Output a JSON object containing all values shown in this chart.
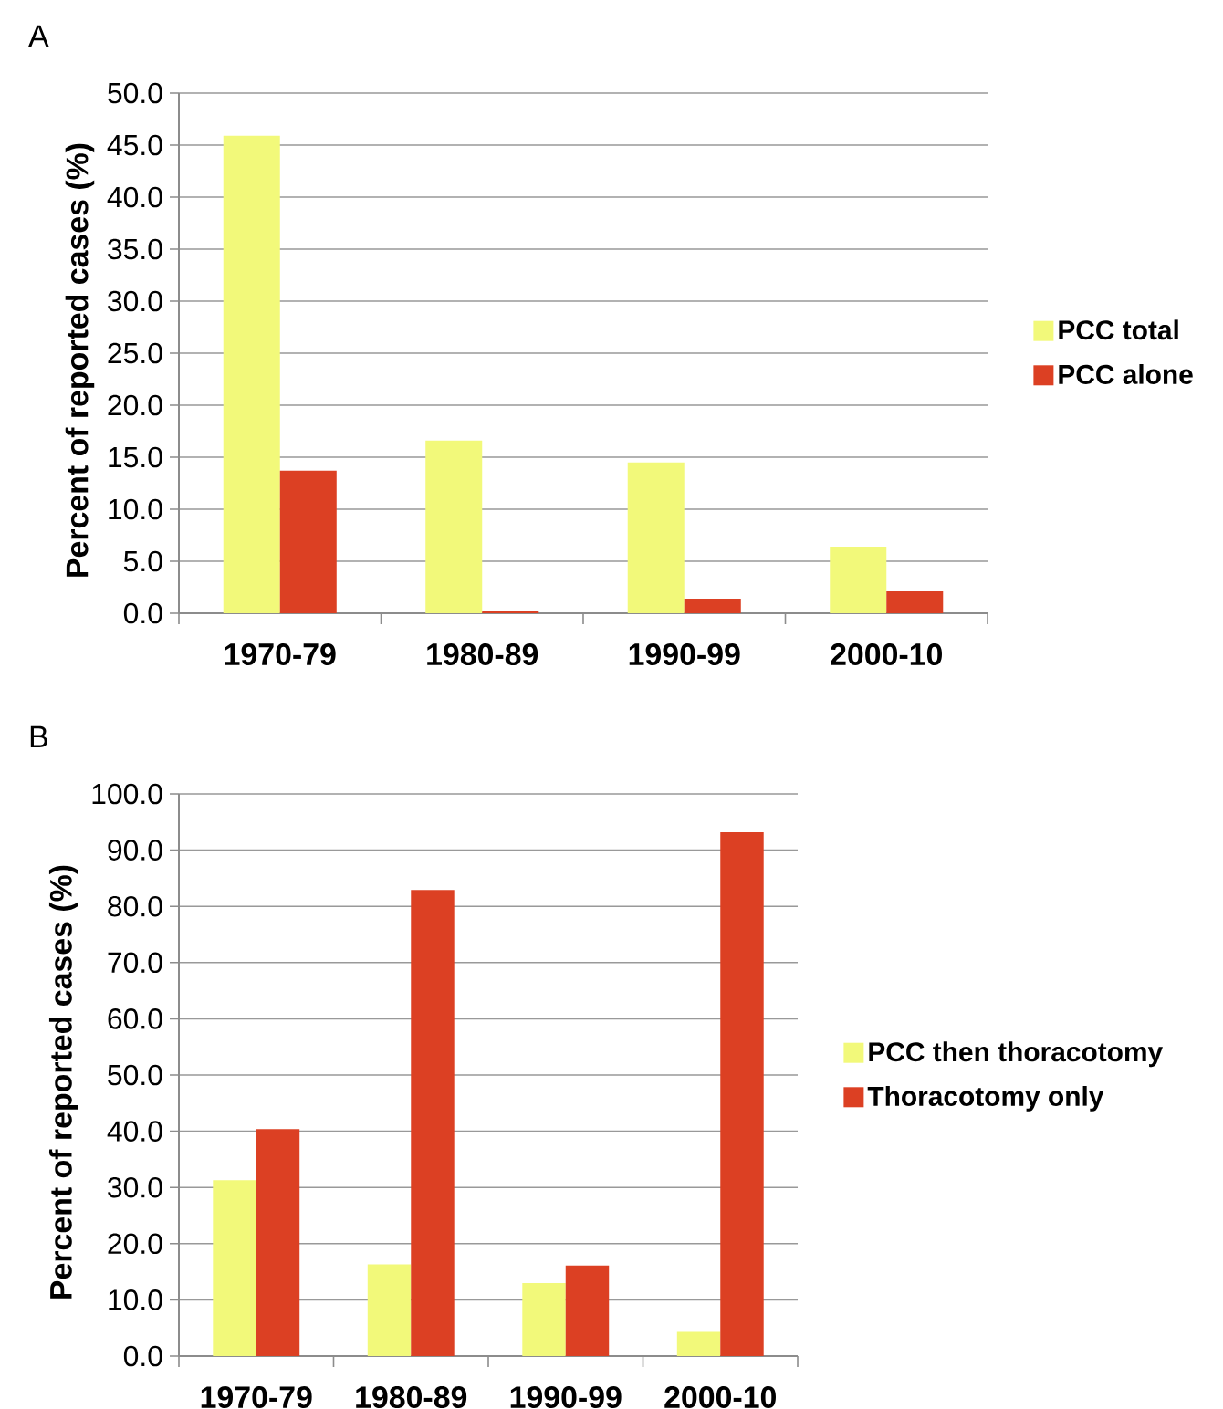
{
  "chart_data": [
    {
      "type": "bar",
      "title": "A",
      "ylabel": "Percent of reported cases (%)",
      "categories": [
        "1970-79",
        "1980-89",
        "1990-99",
        "2000-10"
      ],
      "series": [
        {
          "name": "PCC total",
          "color": "#f2f97a",
          "values": [
            45.9,
            16.6,
            14.5,
            6.4
          ]
        },
        {
          "name": "PCC alone",
          "color": "#dc4023",
          "values": [
            13.7,
            0.2,
            1.4,
            2.1
          ]
        }
      ],
      "ylim": [
        0,
        50
      ],
      "yticks": [
        {
          "value": 0,
          "label": "0.0"
        },
        {
          "value": 5,
          "label": "5.0"
        },
        {
          "value": 10,
          "label": "10.0"
        },
        {
          "value": 15,
          "label": "15.0"
        },
        {
          "value": 20,
          "label": "20.0"
        },
        {
          "value": 25,
          "label": "25.0"
        },
        {
          "value": 30,
          "label": "30.0"
        },
        {
          "value": 35,
          "label": "35.0"
        },
        {
          "value": 40,
          "label": "40.0"
        },
        {
          "value": 45,
          "label": "45.0"
        },
        {
          "value": 50,
          "label": "50.0"
        }
      ],
      "grid": "y",
      "legend": "right"
    },
    {
      "type": "bar",
      "title": "B",
      "ylabel": "Percent of reported cases (%)",
      "categories": [
        "1970-79",
        "1980-89",
        "1990-99",
        "2000-10"
      ],
      "series": [
        {
          "name": "PCC then thoracotomy",
          "color": "#f2f97a",
          "values": [
            31.3,
            16.3,
            13.0,
            4.3
          ]
        },
        {
          "name": "Thoracotomy only",
          "color": "#dc4023",
          "values": [
            40.4,
            82.9,
            16.1,
            93.2
          ]
        }
      ],
      "ylim": [
        0,
        100
      ],
      "yticks": [
        {
          "value": 0,
          "label": "0.0"
        },
        {
          "value": 10,
          "label": "10.0"
        },
        {
          "value": 20,
          "label": "20.0"
        },
        {
          "value": 30,
          "label": "30.0"
        },
        {
          "value": 40,
          "label": "40.0"
        },
        {
          "value": 50,
          "label": "50.0"
        },
        {
          "value": 60,
          "label": "60.0"
        },
        {
          "value": 70,
          "label": "70.0"
        },
        {
          "value": 80,
          "label": "80.0"
        },
        {
          "value": 90,
          "label": "90.0"
        },
        {
          "value": 100,
          "label": "100.0"
        }
      ],
      "grid": "y",
      "legend": "right"
    }
  ]
}
